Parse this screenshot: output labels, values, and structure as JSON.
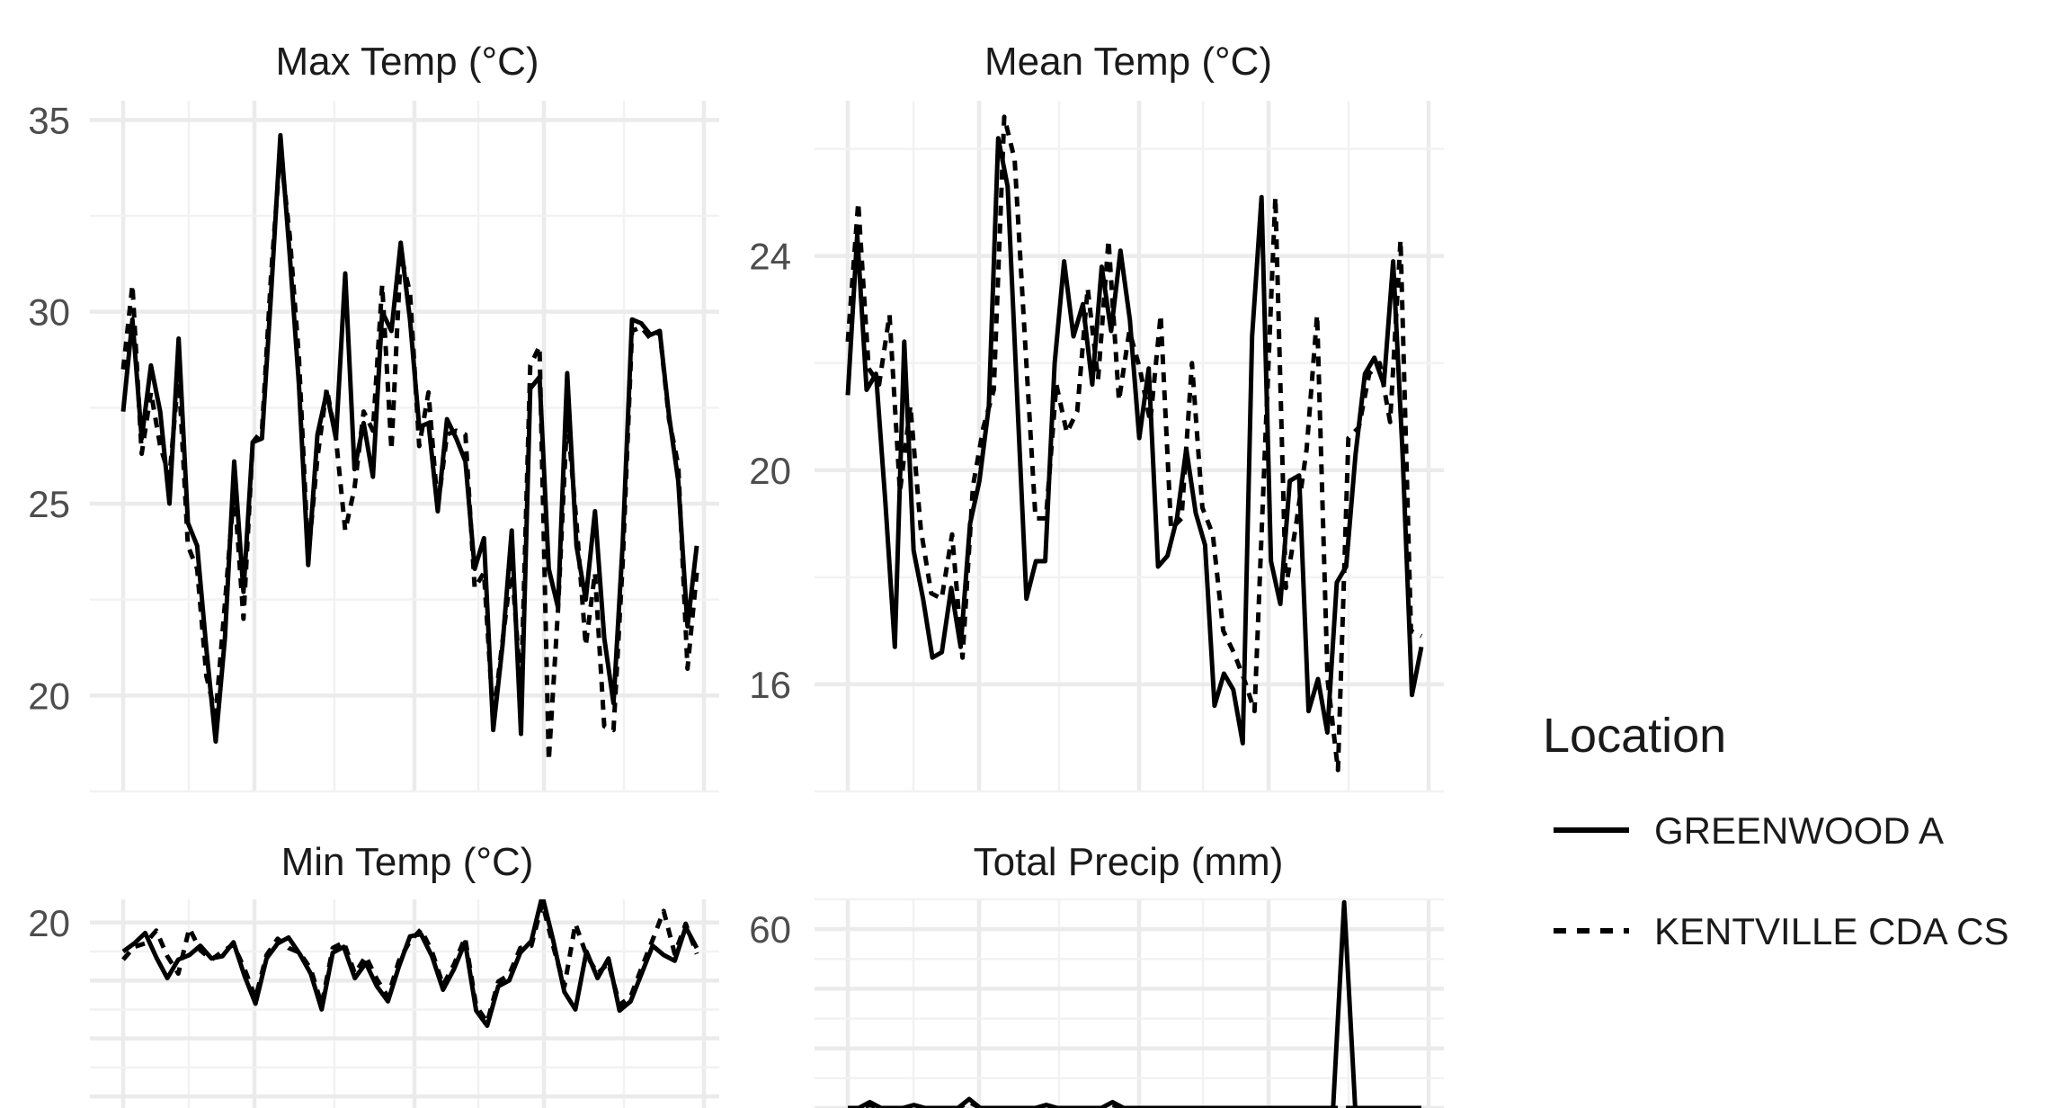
{
  "legend": {
    "title": "Location",
    "entries": [
      {
        "label": "GREENWOOD A",
        "style": "solid"
      },
      {
        "label": "KENTVILLE CDA CS",
        "style": "dashed"
      }
    ]
  },
  "chart_data": [
    {
      "type": "line",
      "title": "Max Temp (°C)",
      "xlabel": "",
      "ylabel": "",
      "yticks": [
        20,
        25,
        30,
        35
      ],
      "ylim": [
        17.5,
        35.5
      ],
      "grid": true,
      "series": [
        {
          "name": "GREENWOOD A",
          "style": "solid",
          "values": [
            27.4,
            29.8,
            26.7,
            28.6,
            27.4,
            25.0,
            29.3,
            24.5,
            23.9,
            21.2,
            18.8,
            21.5,
            26.1,
            22.7,
            26.6,
            26.7,
            30.5,
            34.6,
            31.5,
            28.1,
            23.4,
            26.8,
            27.9,
            26.7,
            31.0,
            25.9,
            27.1,
            25.7,
            30.0,
            29.5,
            31.8,
            29.8,
            27.0,
            27.1,
            24.8,
            27.2,
            26.7,
            26.1,
            23.3,
            24.1,
            19.1,
            21.3,
            24.3,
            19.0,
            28.0,
            28.3,
            23.3,
            22.3,
            28.4,
            23.9,
            22.5,
            24.8,
            21.5,
            19.8,
            24.0,
            29.8,
            29.7,
            29.4,
            29.5,
            27.3,
            25.6,
            21.8,
            23.9
          ]
        },
        {
          "name": "KENTVILLE CDA CS",
          "style": "dashed",
          "values": [
            28.5,
            30.7,
            26.3,
            27.9,
            26.5,
            25.7,
            28.4,
            23.9,
            23.3,
            20.5,
            19.5,
            22.4,
            25.4,
            22.0,
            26.6,
            26.9,
            31.0,
            34.2,
            32.0,
            28.8,
            23.6,
            26.2,
            28.0,
            26.7,
            24.3,
            25.4,
            27.4,
            26.9,
            30.7,
            26.4,
            31.5,
            30.5,
            26.5,
            27.9,
            24.9,
            26.8,
            26.9,
            26.8,
            22.8,
            23.2,
            19.4,
            21.4,
            23.4,
            20.1,
            28.6,
            29.1,
            18.3,
            22.2,
            27.3,
            24.5,
            21.3,
            23.2,
            19.2,
            19.1,
            23.5,
            29.5,
            29.6,
            29.3,
            29.5,
            27.2,
            26.0,
            20.7,
            23.2
          ]
        }
      ]
    },
    {
      "type": "line",
      "title": "Mean Temp (°C)",
      "xlabel": "",
      "ylabel": "",
      "yticks": [
        16,
        20,
        24
      ],
      "ylim": [
        14.0,
        26.9
      ],
      "grid": true,
      "series": [
        {
          "name": "GREENWOOD A",
          "style": "solid",
          "values": [
            21.4,
            24.4,
            21.5,
            21.8,
            19.4,
            16.7,
            22.4,
            18.5,
            17.6,
            16.5,
            16.6,
            17.8,
            16.7,
            19.0,
            19.8,
            21.2,
            26.2,
            25.3,
            21.4,
            17.6,
            18.3,
            18.3,
            22.0,
            23.9,
            22.5,
            23.1,
            21.6,
            23.8,
            22.6,
            24.1,
            22.8,
            20.6,
            21.9,
            18.2,
            18.4,
            19.1,
            20.4,
            19.2,
            18.6,
            15.6,
            16.2,
            15.9,
            14.9,
            22.5,
            25.1,
            18.3,
            17.5,
            19.8,
            19.9,
            15.5,
            16.1,
            15.1,
            17.9,
            18.2,
            20.3,
            21.8,
            22.1,
            21.6,
            23.9,
            20.3,
            15.8,
            16.7
          ]
        },
        {
          "name": "KENTVILLE CDA CS",
          "style": "dashed",
          "values": [
            22.4,
            25.0,
            21.9,
            21.6,
            22.9,
            19.6,
            21.2,
            18.9,
            17.7,
            17.6,
            18.8,
            16.5,
            19.7,
            20.8,
            21.5,
            26.6,
            25.8,
            22.4,
            19.1,
            19.1,
            21.6,
            20.7,
            21.1,
            23.4,
            21.7,
            24.3,
            21.3,
            22.6,
            21.9,
            20.9,
            22.9,
            18.9,
            19.1,
            22.0,
            19.3,
            18.8,
            17.0,
            16.6,
            16.1,
            15.5,
            20.4,
            25.1,
            17.8,
            19.0,
            20.4,
            22.9,
            16.1,
            14.4,
            20.6,
            20.8,
            21.8,
            22.0,
            20.9,
            24.3,
            17.0,
            16.9
          ]
        }
      ]
    },
    {
      "type": "line",
      "title": "Min Temp (°C)",
      "xlabel": "",
      "ylabel": "",
      "yticks": [
        20
      ],
      "ylim": [
        4.0,
        22.0
      ],
      "grid": true,
      "series": [
        {
          "name": "GREENWOOD A",
          "style": "solid",
          "values": [
            17.5,
            18.2,
            19.1,
            17.0,
            15.2,
            16.8,
            17.2,
            18.0,
            16.9,
            17.1,
            18.3,
            15.4,
            13.0,
            16.9,
            18.2,
            18.7,
            17.3,
            15.6,
            12.5,
            17.4,
            17.9,
            15.2,
            16.5,
            14.5,
            13.2,
            16.2,
            18.8,
            19.0,
            17.1,
            14.2,
            16.0,
            18.3,
            12.4,
            11.1,
            14.5,
            15.0,
            17.4,
            18.4,
            22.3,
            18.4,
            14.0,
            12.5,
            17.5,
            15.2,
            16.9,
            12.4,
            13.2,
            15.6,
            18.0,
            17.2,
            16.7,
            19.6,
            17.8
          ]
        },
        {
          "name": "KENTVILLE CDA CS",
          "style": "dashed",
          "values": [
            16.8,
            17.9,
            18.2,
            19.3,
            17.1,
            15.6,
            19.5,
            17.6,
            16.8,
            17.5,
            18.1,
            16.0,
            13.5,
            17.2,
            18.6,
            17.8,
            17.4,
            16.0,
            12.9,
            17.8,
            18.3,
            15.6,
            17.1,
            15.1,
            13.6,
            16.7,
            18.4,
            19.4,
            17.5,
            14.6,
            16.4,
            18.7,
            12.8,
            11.4,
            14.9,
            15.5,
            17.8,
            18.0,
            21.7,
            17.9,
            14.5,
            19.9,
            17.2,
            15.6,
            16.5,
            12.9,
            13.6,
            16.1,
            18.5,
            21.0,
            17.3,
            19.9,
            17.3
          ]
        }
      ]
    },
    {
      "type": "line",
      "title": "Total Precip (mm)",
      "xlabel": "",
      "ylabel": "",
      "yticks": [
        60
      ],
      "ylim": [
        0,
        70
      ],
      "grid": true,
      "series": [
        {
          "name": "GREENWOOD A",
          "style": "solid",
          "values": [
            0,
            0,
            2,
            0,
            0,
            0,
            1,
            0,
            0,
            0,
            0,
            3,
            0,
            0,
            0,
            0,
            0,
            0,
            1,
            0,
            0,
            0,
            0,
            0,
            2,
            0,
            0,
            0,
            0,
            0,
            0,
            0,
            0,
            0,
            0,
            0,
            0,
            0,
            0,
            0,
            0,
            0,
            0,
            0,
            0,
            69,
            0,
            0,
            0,
            0,
            0,
            0,
            0
          ]
        },
        {
          "name": "KENTVILLE CDA CS",
          "style": "dashed",
          "values": [
            0,
            0,
            1,
            0,
            0,
            0,
            0,
            0,
            0,
            0,
            0,
            2,
            0,
            0,
            0,
            0,
            0,
            0,
            1,
            0,
            0,
            0,
            0,
            0,
            1,
            0,
            0,
            0,
            0,
            0,
            0,
            0,
            0,
            0,
            0,
            0,
            0,
            0,
            0,
            0,
            0,
            0,
            0,
            0,
            0,
            0,
            0,
            0,
            0,
            0,
            0,
            0,
            0
          ]
        }
      ]
    }
  ]
}
